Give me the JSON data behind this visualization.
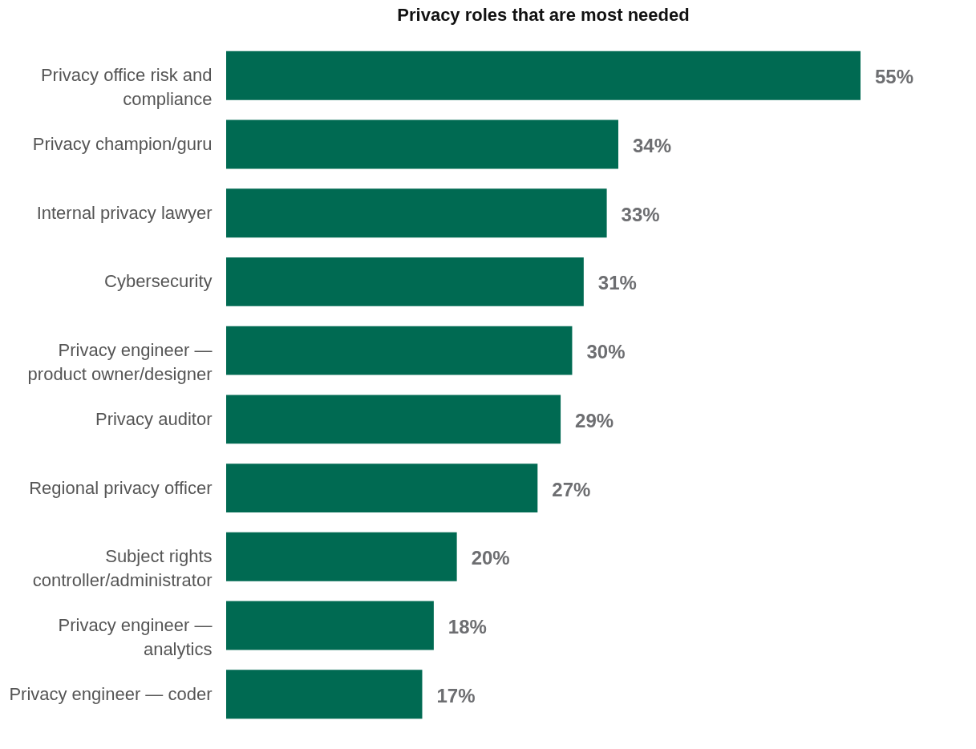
{
  "chart_data": {
    "type": "bar",
    "orientation": "horizontal",
    "title": "Privacy roles that are most needed",
    "categories": [
      "Privacy office risk and compliance",
      "Privacy champion/guru",
      "Internal privacy lawyer",
      "Cybersecurity",
      "Privacy engineer — product owner/designer",
      "Privacy auditor",
      "Regional privacy officer",
      "Subject rights controller/administrator",
      "Privacy engineer — analytics",
      "Privacy engineer — coder"
    ],
    "values": [
      55,
      34,
      33,
      31,
      30,
      29,
      27,
      20,
      18,
      17
    ],
    "value_labels": [
      "55%",
      "34%",
      "33%",
      "31%",
      "30%",
      "29%",
      "27%",
      "20%",
      "18%",
      "17%"
    ],
    "color": "#006a52"
  }
}
